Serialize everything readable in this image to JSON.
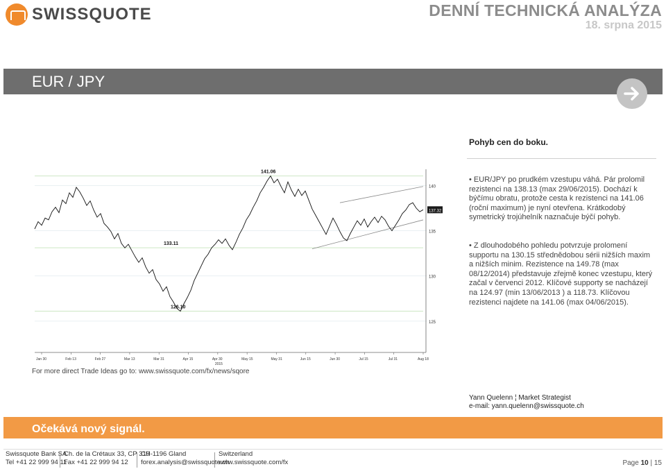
{
  "header": {
    "logo_text": "SWISSQUOTE",
    "title": "DENNÍ TECHNICKÁ ANALÝZA",
    "date": "18. srpna 2015"
  },
  "banner": {
    "pair": "EUR / JPY"
  },
  "icons": {
    "next": "arrow-right-icon",
    "logo": "swissquote-logo-icon"
  },
  "colors": {
    "banner_bg": "#6e6e6e",
    "accent_orange": "#f29a45",
    "title_grey": "#8c8c8c"
  },
  "analysis": {
    "heading": "Pohyb cen do boku.",
    "bullets": [
      "EUR/JPY po prudkém vzestupu váhá. Pár prolomil rezistenci na 138.13 (max 29/06/2015). Dochází k býčímu obratu, protože cesta k rezistenci na 141.06 (roční maximum) je nyní otevřena. Krátkodobý symetrický trojúhelník naznačuje býčí pohyb.",
      "Z dlouhodobého pohledu potvrzuje prolomení supportu na 130.15 střednědobou sérii nižších maxim a nižších minim. Rezistence na 149.78 (max 08/12/2014) představuje zřejmě konec vzestupu, který začal v červenci 2012. Klíčové supporty se nacházejí na 124.97 (min 13/06/2013 ) a 118.73. Klíčovou rezistenci najdete na 141.06 (max 04/06/2015)."
    ]
  },
  "chart_data": {
    "type": "line",
    "title": "",
    "xlabel": "",
    "ylabel": "",
    "year_label": "2015",
    "x_ticks": [
      "Jan 30",
      "Feb 13",
      "Feb 27",
      "Mar 13",
      "Mar 31",
      "Apr 15",
      "Apr 30",
      "May 15",
      "May 31",
      "Jun 15",
      "Jun 30",
      "Jul 15",
      "Jul 31",
      "Aug 18"
    ],
    "y_ticks": [
      "140",
      "135",
      "130",
      "125"
    ],
    "y_tick_values": [
      140,
      135,
      130,
      125
    ],
    "ylim": [
      124.6,
      141.8
    ],
    "annotations": [
      {
        "label": "141.06",
        "value": 141.06
      },
      {
        "label": "133.11",
        "value": 133.11
      },
      {
        "label": "126.10",
        "value": 126.1
      }
    ],
    "last_price_label": "137.32",
    "horizontal_levels": [
      141.06,
      133.11,
      126.1
    ],
    "series": [
      {
        "values": [
          135.2,
          136.0,
          135.6,
          136.4,
          136.2,
          137.1,
          137.6,
          137.0,
          138.4,
          138.0,
          139.2,
          138.7,
          139.8,
          139.3,
          138.6,
          137.8,
          138.3,
          137.3,
          136.5,
          136.9,
          135.8,
          135.4,
          134.9,
          134.1,
          134.7,
          133.6,
          133.1,
          133.5,
          132.8,
          132.1,
          131.5,
          132.0,
          131.0,
          130.3,
          130.7,
          129.6,
          129.1,
          128.3,
          128.8,
          127.7,
          127.1,
          126.4,
          126.1,
          126.9,
          127.6,
          128.4,
          129.5,
          130.3,
          131.1,
          131.9,
          132.4,
          133.1,
          133.5,
          134.0,
          133.6,
          134.1,
          133.4,
          132.9,
          133.7,
          134.6,
          135.3,
          136.2,
          136.8,
          137.6,
          138.3,
          139.2,
          139.8,
          140.5,
          141.06,
          140.3,
          140.7,
          139.9,
          139.2,
          140.4,
          139.5,
          138.8,
          139.6,
          138.9,
          139.4,
          138.4,
          137.4,
          136.7,
          136.0,
          135.3,
          134.6,
          135.5,
          136.4,
          135.7,
          134.9,
          134.2,
          133.9,
          134.7,
          135.4,
          136.1,
          135.6,
          136.3,
          135.4,
          136.0,
          136.5,
          135.9,
          136.6,
          136.2,
          135.5,
          135.0,
          135.6,
          136.2,
          136.9,
          137.3,
          137.9,
          138.1,
          137.5,
          137.1,
          137.32
        ]
      }
    ]
  },
  "more_link": "For more direct Trade Ideas go to: www.swissquote.com/fx/news/sqore",
  "author": {
    "name": "Yann Quelenn ¦ Market Strategist",
    "email": "e-mail: yann.quelenn@swissquote.ch"
  },
  "signal": {
    "text": "Očekává nový signál."
  },
  "footer": {
    "col1": [
      "Swissquote Bank SA",
      "Tel +41 22 999 94 11"
    ],
    "col2": [
      "Ch. de la Crétaux 33, CP 319",
      "Fax +41 22 999 94 12"
    ],
    "col3": [
      "CH-1196 Gland",
      "forex.analysis@swissquote.ch"
    ],
    "col4": [
      "Switzerland",
      "www.swissquote.com/fx"
    ],
    "page_label": "Page",
    "page_current": "10",
    "page_total": "15"
  }
}
